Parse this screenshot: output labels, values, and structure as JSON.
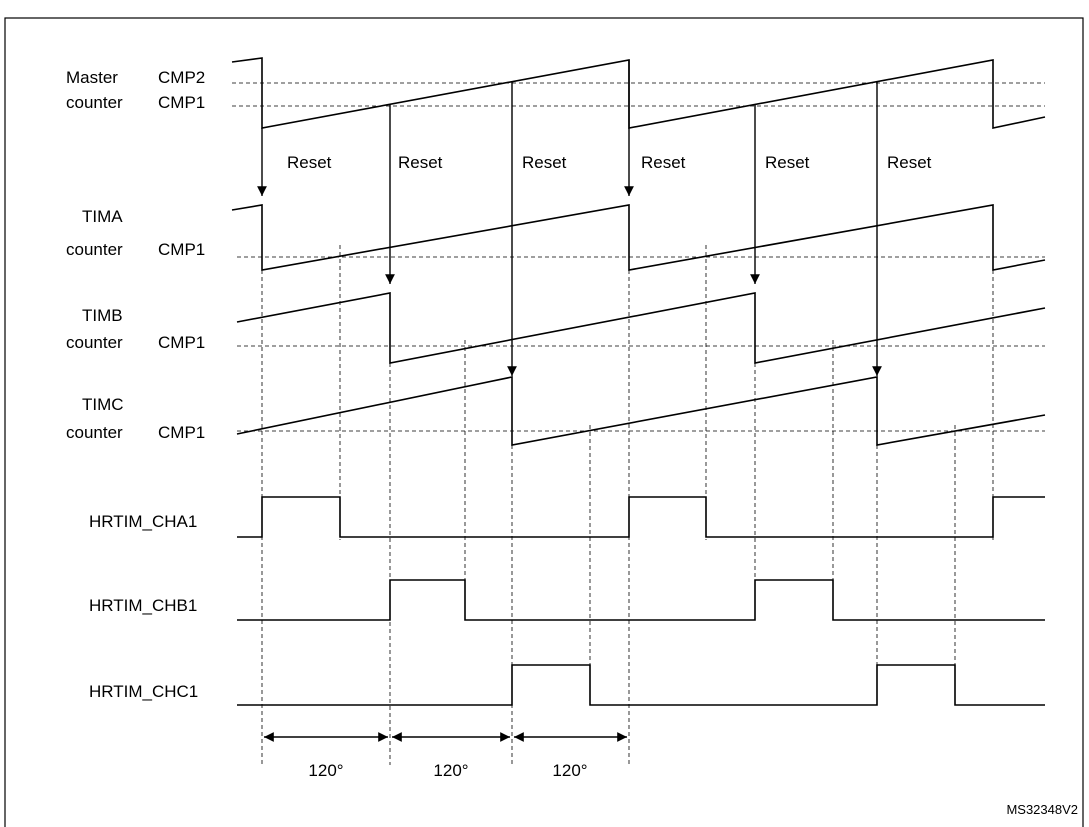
{
  "rows": [
    {
      "label": [
        "Master",
        "counter"
      ],
      "compare": [
        "CMP2",
        "CMP1"
      ]
    },
    {
      "label": [
        "TIMA",
        "counter"
      ],
      "compare": [
        "CMP1"
      ]
    },
    {
      "label": [
        "TIMB",
        "counter"
      ],
      "compare": [
        "CMP1"
      ]
    },
    {
      "label": [
        "TIMC",
        "counter"
      ],
      "compare": [
        "CMP1"
      ]
    }
  ],
  "resets": [
    "Reset",
    "Reset",
    "Reset",
    "Reset",
    "Reset",
    "Reset"
  ],
  "outputs": [
    "HRTIM_CHA1",
    "HRTIM_CHB1",
    "HRTIM_CHC1"
  ],
  "phases": [
    "120°",
    "120°",
    "120°"
  ],
  "reference": "MS32348V2"
}
